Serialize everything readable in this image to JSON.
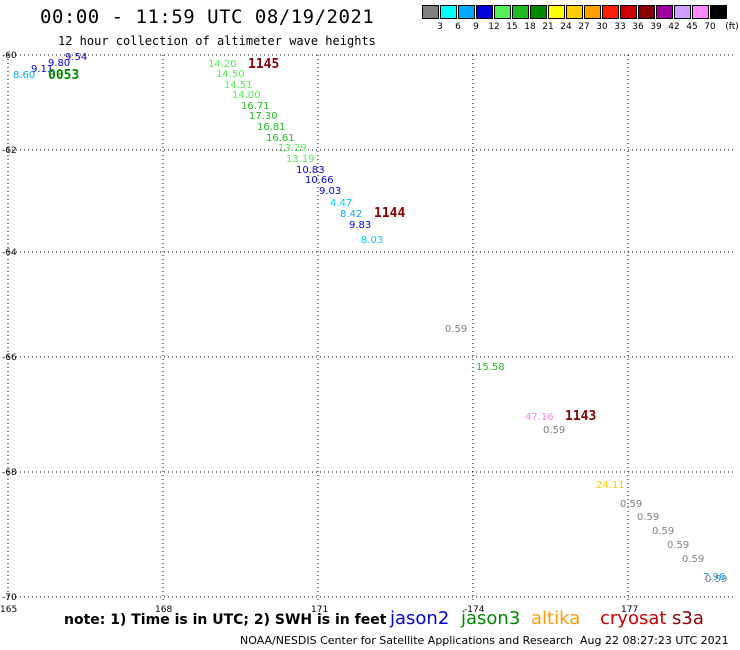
{
  "header": {
    "title": "00:00 - 11:59 UTC 08/19/2021",
    "subtitle": "12 hour collection of altimeter wave heights"
  },
  "legend": {
    "unit": "(ft)",
    "colors": [
      "#808080",
      "#00ffff",
      "#00aaff",
      "#0000dd",
      "#55ee55",
      "#22bb22",
      "#008800",
      "#ffff00",
      "#ffcc00",
      "#ffa000",
      "#ff2000",
      "#cc0000",
      "#880000",
      "#a000a0",
      "#d0a0ff",
      "#ff88ff",
      "#000000"
    ],
    "labels": [
      "3",
      "6",
      "9",
      "12",
      "15",
      "18",
      "21",
      "24",
      "27",
      "30",
      "33",
      "36",
      "39",
      "42",
      "45",
      "70"
    ]
  },
  "axes": {
    "lat_labels": [
      "-60",
      "-62",
      "-64",
      "-66",
      "-68",
      "-70"
    ],
    "lon_labels": [
      "165",
      "168",
      "171",
      "-174",
      "177"
    ]
  },
  "observations": [
    {
      "value": "9.54",
      "color": "#0000dd"
    },
    {
      "value": "9.80",
      "color": "#0000dd"
    },
    {
      "value": "9.11",
      "color": "#0000dd"
    },
    {
      "value": "8.60",
      "color": "#00aaff"
    },
    {
      "value": "14.20",
      "color": "#55ee55"
    },
    {
      "value": "14.50",
      "color": "#55ee55"
    },
    {
      "value": "14.51",
      "color": "#55ee55"
    },
    {
      "value": "14.00",
      "color": "#55ee55"
    },
    {
      "value": "16.71",
      "color": "#22bb22"
    },
    {
      "value": "17.30",
      "color": "#22bb22"
    },
    {
      "value": "16.81",
      "color": "#22bb22"
    },
    {
      "value": "16.61",
      "color": "#22bb22"
    },
    {
      "value": "13.29",
      "color": "#55ee55"
    },
    {
      "value": "13.19",
      "color": "#55ee55"
    },
    {
      "value": "10.83",
      "color": "#0000dd"
    },
    {
      "value": "10.66",
      "color": "#0000dd"
    },
    {
      "value": "9.03",
      "color": "#0000dd"
    },
    {
      "value": "4.47",
      "color": "#00ccff"
    },
    {
      "value": "8.42",
      "color": "#00aaff"
    },
    {
      "value": "9.83",
      "color": "#0000dd"
    },
    {
      "value": "8.03",
      "color": "#00ccff"
    },
    {
      "value": "0.59",
      "color": "#808080"
    },
    {
      "value": "15.58",
      "color": "#22bb22"
    },
    {
      "value": "47.16",
      "color": "#ee88ee"
    },
    {
      "value": "0.59",
      "color": "#808080"
    },
    {
      "value": "24.11",
      "color": "#ffcc00"
    },
    {
      "value": "0.59",
      "color": "#808080"
    },
    {
      "value": "0.59",
      "color": "#808080"
    },
    {
      "value": "0.59",
      "color": "#808080"
    },
    {
      "value": "0.59",
      "color": "#808080"
    },
    {
      "value": "0.59",
      "color": "#808080"
    },
    {
      "value": "7.96",
      "color": "#00aaff"
    },
    {
      "value": "0.59",
      "color": "#808080"
    }
  ],
  "time_labels": [
    {
      "value": "0053",
      "color": "#008800"
    },
    {
      "value": "1145",
      "color": "#880000"
    },
    {
      "value": "1144",
      "color": "#880000"
    },
    {
      "value": "1143",
      "color": "#880000"
    }
  ],
  "footer": {
    "note": "note: 1) Time is in UTC; 2) SWH is in feet",
    "satellites": [
      {
        "name": "jason2",
        "color": "#0000dd"
      },
      {
        "name": "jason3",
        "color": "#008800"
      },
      {
        "name": "altika",
        "color": "#ff9900"
      },
      {
        "name": "cryosat",
        "color": "#cc0000"
      },
      {
        "name": "s3a",
        "color": "#880000"
      }
    ],
    "credit": "NOAA/NESDIS Center for Satellite Applications and Research",
    "stamp": "Aug 22 08:27:23 UTC 2021"
  }
}
